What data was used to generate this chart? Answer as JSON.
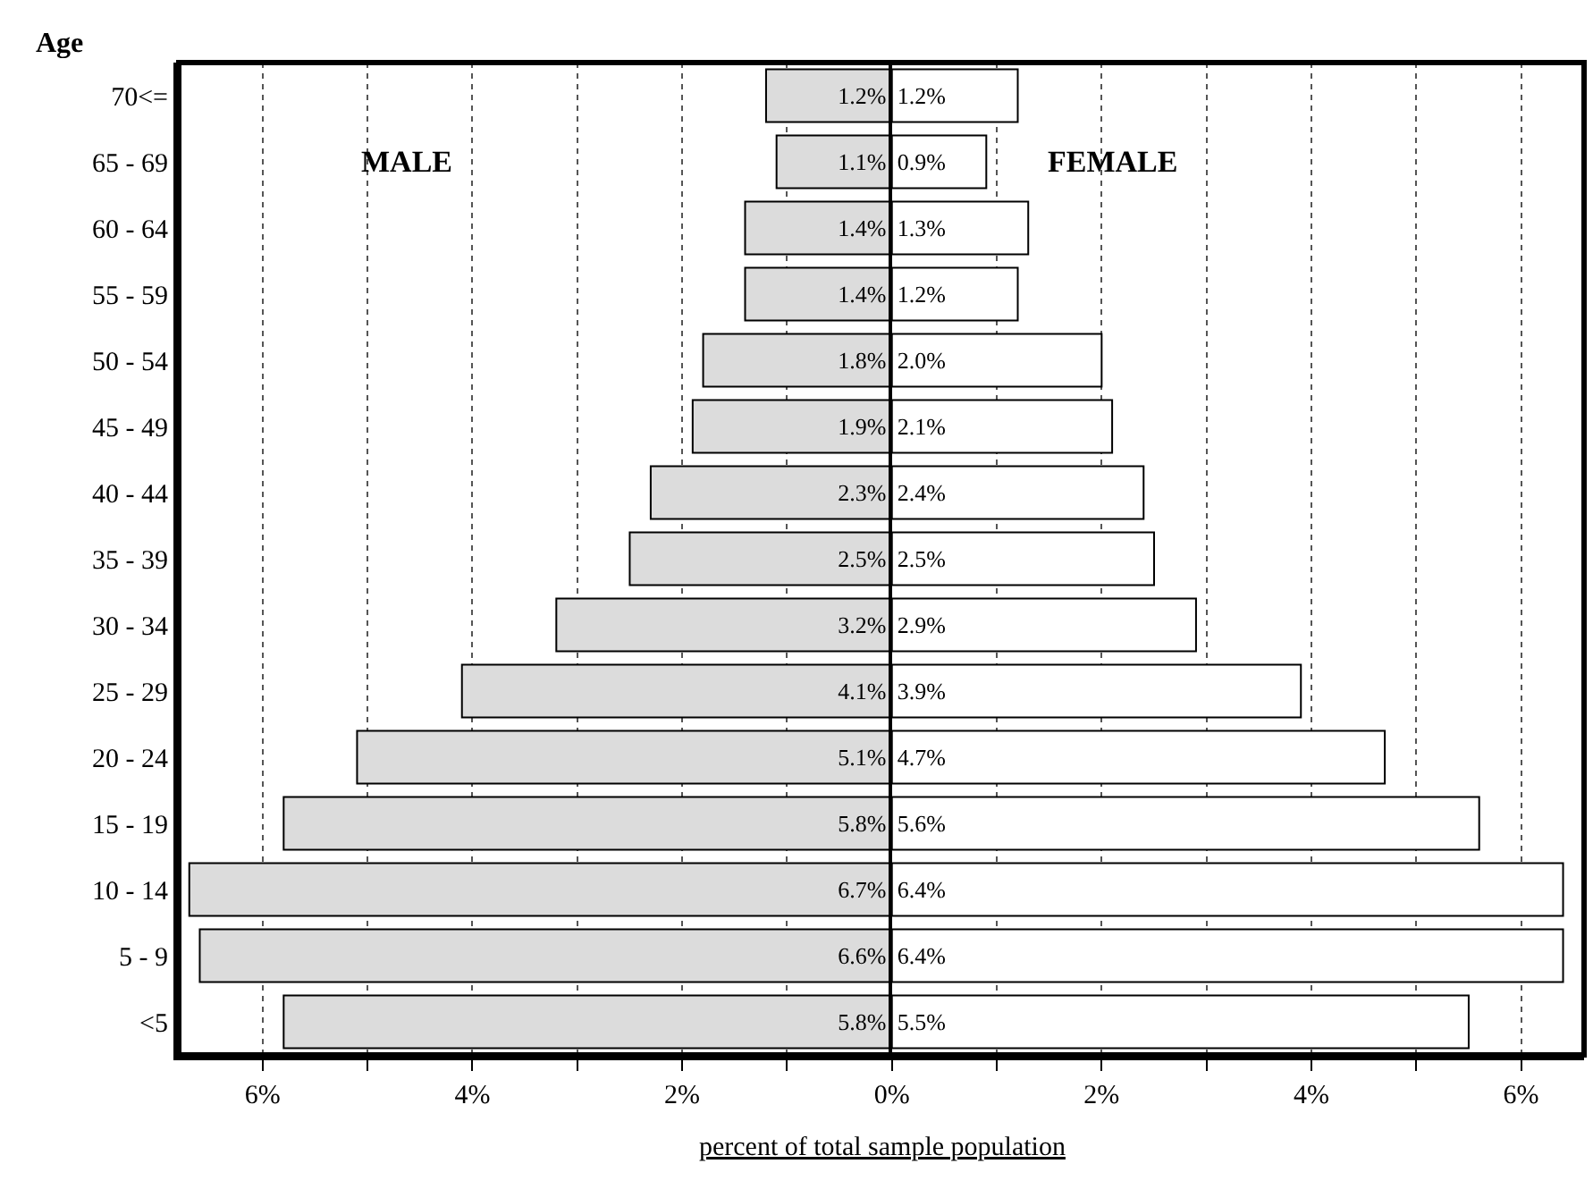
{
  "chart_data": [
    {
      "type": "bar",
      "orientation": "horizontal",
      "ylabel": "Age",
      "xlabel": "percent of total sample population",
      "categories": [
        "70<=",
        "65 - 69",
        "60 - 64",
        "55 - 59",
        "50 - 54",
        "45 - 49",
        "40 - 44",
        "35 - 39",
        "30 - 34",
        "25 - 29",
        "20 - 24",
        "15 - 19",
        "10 - 14",
        "5 - 9",
        "<5"
      ],
      "series": [
        {
          "name": "MALE",
          "color": "#dcdcdc",
          "values": [
            1.2,
            1.1,
            1.4,
            1.4,
            1.8,
            1.9,
            2.3,
            2.5,
            3.2,
            4.1,
            5.1,
            5.8,
            6.7,
            6.6,
            5.8
          ],
          "value_labels": [
            "1.2%",
            "1.1%",
            "1.4%",
            "1.4%",
            "1.8%",
            "1.9%",
            "2.3%",
            "2.5%",
            "3.2%",
            "4.1%",
            "5.1%",
            "5.8%",
            "6.7%",
            "6.6%",
            "5.8%"
          ]
        }
      ],
      "xlim": [
        6.8,
        0
      ],
      "xticks": [
        {
          "value": 6,
          "label": "6%"
        },
        {
          "value": 5,
          "label": null
        },
        {
          "value": 4,
          "label": "4%"
        },
        {
          "value": 3,
          "label": null
        },
        {
          "value": 2,
          "label": "2%"
        },
        {
          "value": 1,
          "label": null
        },
        {
          "value": 0,
          "label": null
        }
      ],
      "grid": "x"
    },
    {
      "type": "bar",
      "orientation": "horizontal",
      "categories": [
        "70<=",
        "65 - 69",
        "60 - 64",
        "55 - 59",
        "50 - 54",
        "45 - 49",
        "40 - 44",
        "35 - 39",
        "30 - 34",
        "25 - 29",
        "20 - 24",
        "15 - 19",
        "10 - 14",
        "5 - 9",
        "<5"
      ],
      "series": [
        {
          "name": "FEMALE",
          "color": "#ffffff",
          "values": [
            1.2,
            0.9,
            1.3,
            1.2,
            2.0,
            2.1,
            2.4,
            2.5,
            2.9,
            3.9,
            4.7,
            5.6,
            6.4,
            6.4,
            5.5
          ],
          "value_labels": [
            "1.2%",
            "0.9%",
            "1.3%",
            "1.2%",
            "2.0%",
            "2.1%",
            "2.4%",
            "2.5%",
            "2.9%",
            "3.9%",
            "4.7%",
            "5.6%",
            "6.4%",
            "6.4%",
            "5.5%"
          ]
        }
      ],
      "xlim": [
        0,
        6.6
      ],
      "xticks": [
        {
          "value": 0,
          "label": "0%"
        },
        {
          "value": 1,
          "label": null
        },
        {
          "value": 2,
          "label": "2%"
        },
        {
          "value": 3,
          "label": null
        },
        {
          "value": 4,
          "label": "4%"
        },
        {
          "value": 5,
          "label": null
        },
        {
          "value": 6,
          "label": "6%"
        }
      ],
      "tick_labels": "x",
      "grid": "x"
    }
  ]
}
